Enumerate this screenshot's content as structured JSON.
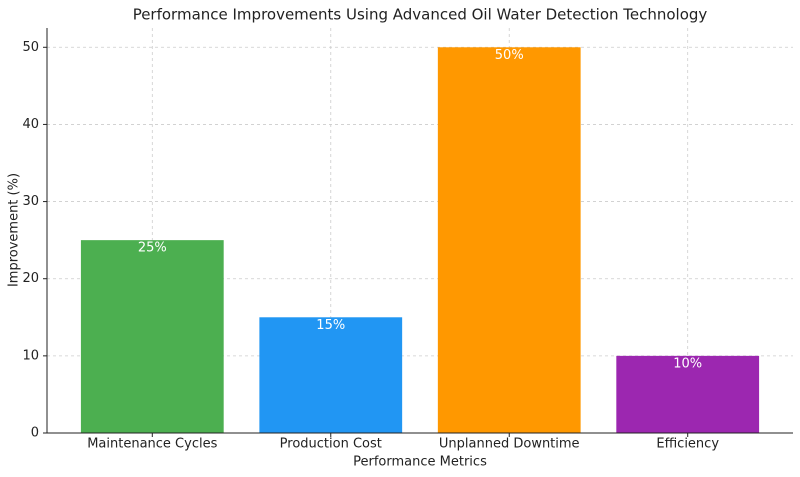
{
  "chart_data": {
    "type": "bar",
    "title": "Performance Improvements Using Advanced Oil Water Detection Technology",
    "xlabel": "Performance Metrics",
    "ylabel": "Improvement (%)",
    "categories": [
      "Maintenance Cycles",
      "Production Cost",
      "Unplanned Downtime",
      "Efficiency"
    ],
    "values": [
      25,
      15,
      50,
      10
    ],
    "value_labels": [
      "25%",
      "15%",
      "50%",
      "10%"
    ],
    "colors": [
      "#4caf50",
      "#2196f3",
      "#ff9800",
      "#9c27b0"
    ],
    "ylim": [
      0,
      52.5
    ],
    "yticks": [
      0,
      10,
      20,
      30,
      40,
      50
    ],
    "grid": true
  }
}
